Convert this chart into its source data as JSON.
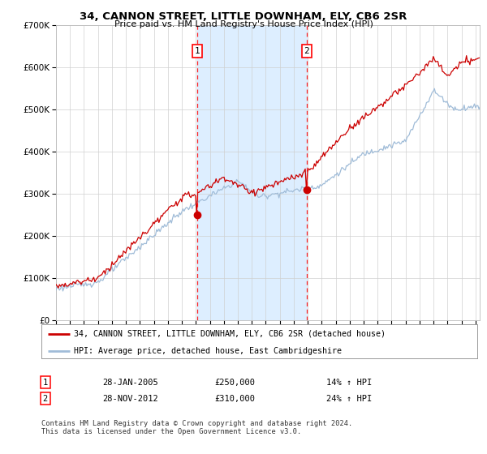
{
  "title": "34, CANNON STREET, LITTLE DOWNHAM, ELY, CB6 2SR",
  "subtitle": "Price paid vs. HM Land Registry's House Price Index (HPI)",
  "legend_line1": "34, CANNON STREET, LITTLE DOWNHAM, ELY, CB6 2SR (detached house)",
  "legend_line2": "HPI: Average price, detached house, East Cambridgeshire",
  "annotation1_date": "28-JAN-2005",
  "annotation1_price": "£250,000",
  "annotation1_hpi": "14% ↑ HPI",
  "annotation2_date": "28-NOV-2012",
  "annotation2_price": "£310,000",
  "annotation2_hpi": "24% ↑ HPI",
  "sale1_x": 2005.08,
  "sale1_y": 250000,
  "sale2_x": 2012.92,
  "sale2_y": 310000,
  "ylim": [
    0,
    700000
  ],
  "xlim": [
    1995.0,
    2025.3
  ],
  "hpi_color": "#a0bcd8",
  "price_color": "#cc0000",
  "background_color": "#ffffff",
  "plot_bg_color": "#ffffff",
  "span_color": "#ddeeff",
  "grid_color": "#d0d0d0",
  "footnote": "Contains HM Land Registry data © Crown copyright and database right 2024.\nThis data is licensed under the Open Government Licence v3.0."
}
